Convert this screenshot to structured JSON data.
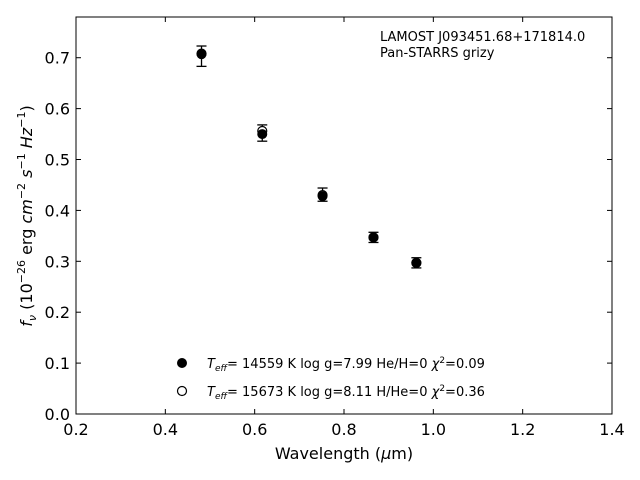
{
  "chart_data": {
    "type": "scatter",
    "title": "",
    "xlabel": "Wavelength (μm)",
    "ylabel": "fν (10⁻²⁶ erg cm⁻² s⁻¹ Hz⁻¹)",
    "xlim": [
      0.2,
      1.4
    ],
    "ylim": [
      0.0,
      0.78
    ],
    "xticks": [
      "0.2",
      "0.4",
      "0.6",
      "0.8",
      "1.0",
      "1.2",
      "1.4"
    ],
    "yticks": [
      "0.0",
      "0.1",
      "0.2",
      "0.3",
      "0.4",
      "0.5",
      "0.6",
      "0.7"
    ],
    "grid": false,
    "annotation": {
      "line1": "LAMOST J093451.68+171814.0",
      "line2": "Pan-STARRS grizy"
    },
    "observed": {
      "x": [
        0.481,
        0.617,
        0.752,
        0.866,
        0.962
      ],
      "y": [
        0.703,
        0.552,
        0.431,
        0.347,
        0.297
      ],
      "err": [
        0.02,
        0.016,
        0.013,
        0.01,
        0.01
      ]
    },
    "series": [
      {
        "name": "T_eff= 14559 K  log g=7.99  He/H=0  χ²=0.09",
        "marker": "filled-circle",
        "x": [
          0.481,
          0.617,
          0.752,
          0.866,
          0.962
        ],
        "y": [
          0.707,
          0.55,
          0.428,
          0.347,
          0.297
        ]
      },
      {
        "name": "T_eff= 15673 K  log g=8.11  H/He=0  χ²=0.36",
        "marker": "open-circle",
        "x": [
          0.481,
          0.617,
          0.752,
          0.866,
          0.962
        ],
        "y": [
          0.708,
          0.556,
          0.43,
          0.347,
          0.297
        ]
      }
    ],
    "legend": {
      "placement": "lower-center",
      "entries": [
        {
          "teff": "= 14559 K",
          "logg": "log g=7.99",
          "comp": "He/H=0",
          "chi": "=0.09"
        },
        {
          "teff": "= 15673 K",
          "logg": "log g=8.11",
          "comp": "H/He=0",
          "chi": "=0.36"
        }
      ]
    }
  }
}
